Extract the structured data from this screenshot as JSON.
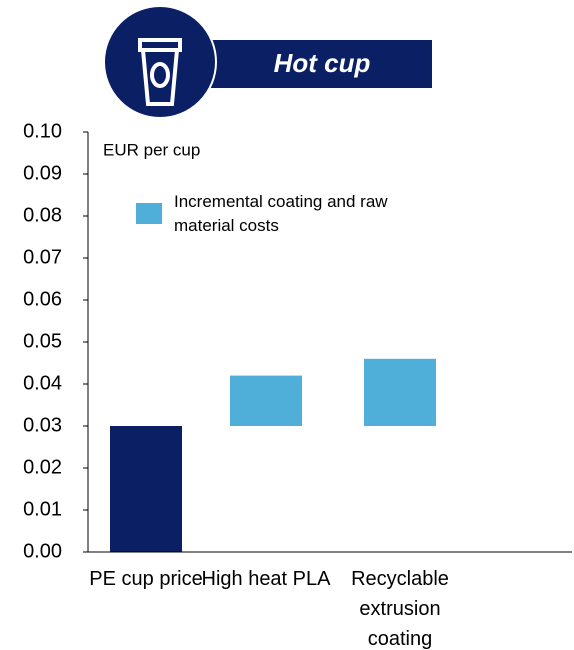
{
  "chart_data": {
    "type": "waterfall",
    "title": "Hot cup",
    "ylabel": "EUR per cup",
    "categories": [
      "PE cup price",
      "High heat PLA",
      "Recyclable extrusion coating"
    ],
    "series": [
      {
        "color": "#0b1f65",
        "values": [
          0.03,
          null,
          null
        ]
      },
      {
        "name": "Incremental coating and raw material costs",
        "color": "#4fafd9",
        "values": [
          null,
          0.012,
          0.016
        ]
      }
    ],
    "ylim": [
      0,
      0.1
    ],
    "yticks": [
      {
        "value": 0,
        "label": "0.00"
      },
      {
        "value": 0.01,
        "label": "0.01"
      },
      {
        "value": 0.02,
        "label": "0.02"
      },
      {
        "value": 0.03,
        "label": "0.03"
      },
      {
        "value": 0.04,
        "label": "0.04"
      },
      {
        "value": 0.05,
        "label": "0.05"
      },
      {
        "value": 0.06,
        "label": "0.06"
      },
      {
        "value": 0.07,
        "label": "0.07"
      },
      {
        "value": 0.08,
        "label": "0.08"
      },
      {
        "value": 0.09,
        "label": "0.09"
      },
      {
        "value": 0.1,
        "label": "0.10"
      }
    ]
  }
}
